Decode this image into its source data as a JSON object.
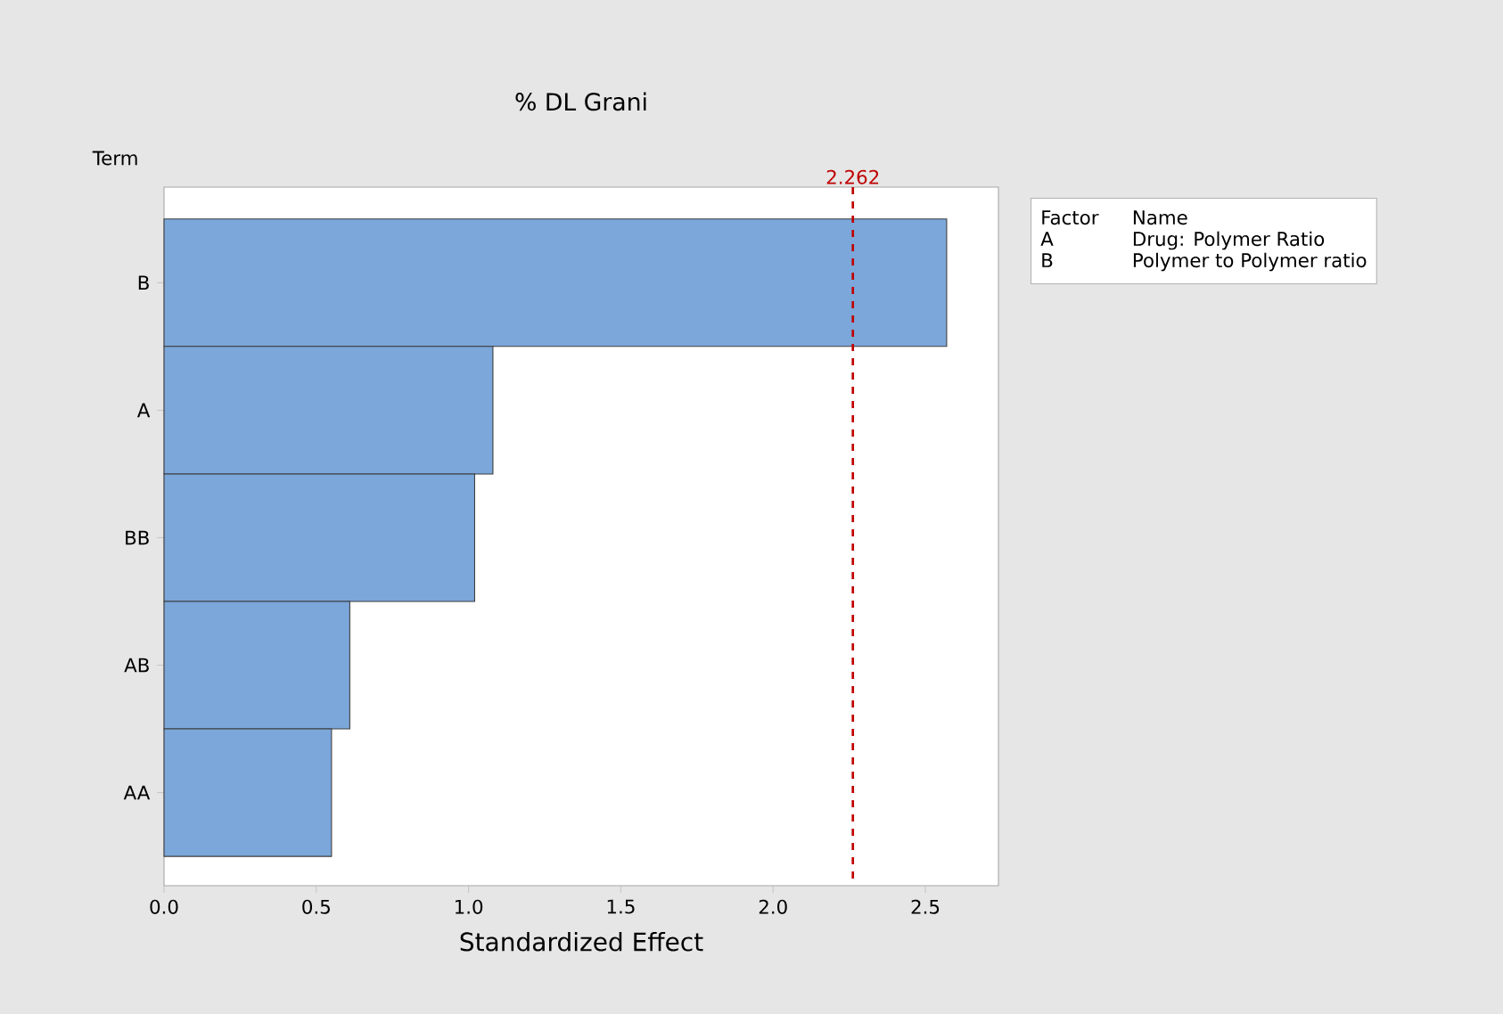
{
  "chart_data": {
    "type": "bar",
    "orientation": "horizontal",
    "title": "% DL Grani",
    "xlabel": "Standardized Effect",
    "ylabel": "Term",
    "categories": [
      "B",
      "A",
      "BB",
      "AB",
      "AA"
    ],
    "values": [
      2.57,
      1.08,
      1.02,
      0.61,
      0.55
    ],
    "color": "#7ba7da",
    "xlim": [
      0,
      2.74
    ],
    "xticks": [
      {
        "value": 0,
        "label": "0.0"
      },
      {
        "value": 0.5,
        "label": "0.5"
      },
      {
        "value": 1,
        "label": "1.0"
      },
      {
        "value": 1.5,
        "label": "1.5"
      },
      {
        "value": 2,
        "label": "2.0"
      },
      {
        "value": 2.5,
        "label": "2.5"
      }
    ],
    "ref_lines": [
      {
        "axis": "x",
        "value": 2.262,
        "label": "2.262",
        "color": "#c00000",
        "line_style": "dashed"
      }
    ],
    "annotations": [
      "Factor",
      "Name",
      "A",
      "Drug: Polymer Ratio",
      "B",
      "Polymer to Polymer ratio"
    ],
    "grid": false
  }
}
